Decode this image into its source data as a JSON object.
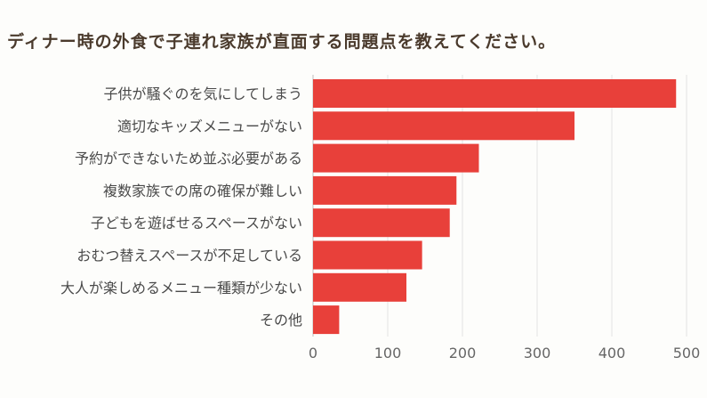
{
  "chart_data": {
    "type": "bar",
    "orientation": "horizontal",
    "title": "ディナー時の外食で子連れ家族が直面する問題点を教えてください。",
    "categories": [
      "子供が騒ぐのを気にしてしまう",
      "適切なキッズメニューがない",
      "予約ができないため並ぶ必要がある",
      "複数家族での席の確保が難しい",
      "子どもを遊ばせるスペースがない",
      "おむつ替えスペースが不足している",
      "大人が楽しめるメニュー種類が少ない",
      "その他"
    ],
    "values": [
      486,
      350,
      222,
      192,
      183,
      146,
      125,
      35
    ],
    "xlim": [
      0,
      500
    ],
    "xticks": [
      0,
      100,
      200,
      300,
      400,
      500
    ],
    "grid": true,
    "bar_color": "#e8403a"
  }
}
